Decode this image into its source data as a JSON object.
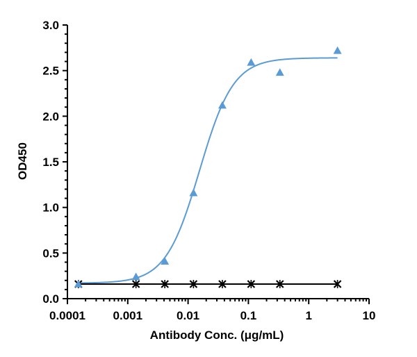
{
  "chart_data": {
    "type": "scatter",
    "title": "",
    "xlabel": "Antibody Conc. (μg/mL)",
    "ylabel": "OD450",
    "x_scale": "log",
    "xlim": [
      0.0001,
      10
    ],
    "ylim": [
      0,
      3
    ],
    "x_ticks": [
      0.0001,
      0.001,
      0.01,
      0.1,
      1,
      10
    ],
    "x_tick_labels": [
      "0.0001",
      "0.001",
      "0.01",
      "0.1",
      "1",
      "10"
    ],
    "y_ticks": [
      0,
      0.5,
      1,
      1.5,
      2,
      2.5,
      3
    ],
    "y_tick_labels": [
      "0.0",
      "0.5",
      "1.0",
      "1.5",
      "2.0",
      "2.5",
      "3.0"
    ],
    "grid": false,
    "legend": "none",
    "series": [
      {
        "color": "#5b9bd5",
        "marker": "triangle",
        "fit": "four-parameter logistic curve",
        "x": [
          0.000152,
          0.00137,
          0.00412,
          0.0123,
          0.037,
          0.111,
          0.333,
          3.0
        ],
        "y": [
          0.16,
          0.24,
          0.41,
          1.16,
          2.12,
          2.59,
          2.48,
          2.72
        ]
      },
      {
        "color": "#000000",
        "marker": "x",
        "fit": "connecting line",
        "x": [
          0.000152,
          0.00137,
          0.00412,
          0.0123,
          0.037,
          0.111,
          0.333,
          3.0
        ],
        "y": [
          0.16,
          0.16,
          0.16,
          0.16,
          0.16,
          0.16,
          0.16,
          0.16
        ]
      }
    ],
    "fit_curve": {
      "bottom": 0.17,
      "top": 2.64,
      "ec50": 0.0155,
      "hill": 1.55,
      "color": "#5b9bd5"
    }
  }
}
